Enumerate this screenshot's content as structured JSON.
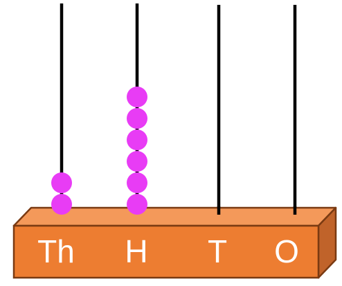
{
  "abacus": {
    "columns": [
      {
        "label": "Th",
        "beads": 2
      },
      {
        "label": "H",
        "beads": 6
      },
      {
        "label": "T",
        "beads": 0
      },
      {
        "label": "O",
        "beads": 0
      }
    ],
    "colors": {
      "bead": "#e83cf5",
      "rod": "#000000",
      "base_front": "#ed7d31",
      "base_top": "#f4995a",
      "base_side": "#c0632a",
      "base_outline": "#7a3a12",
      "label": "#ffffff"
    }
  }
}
